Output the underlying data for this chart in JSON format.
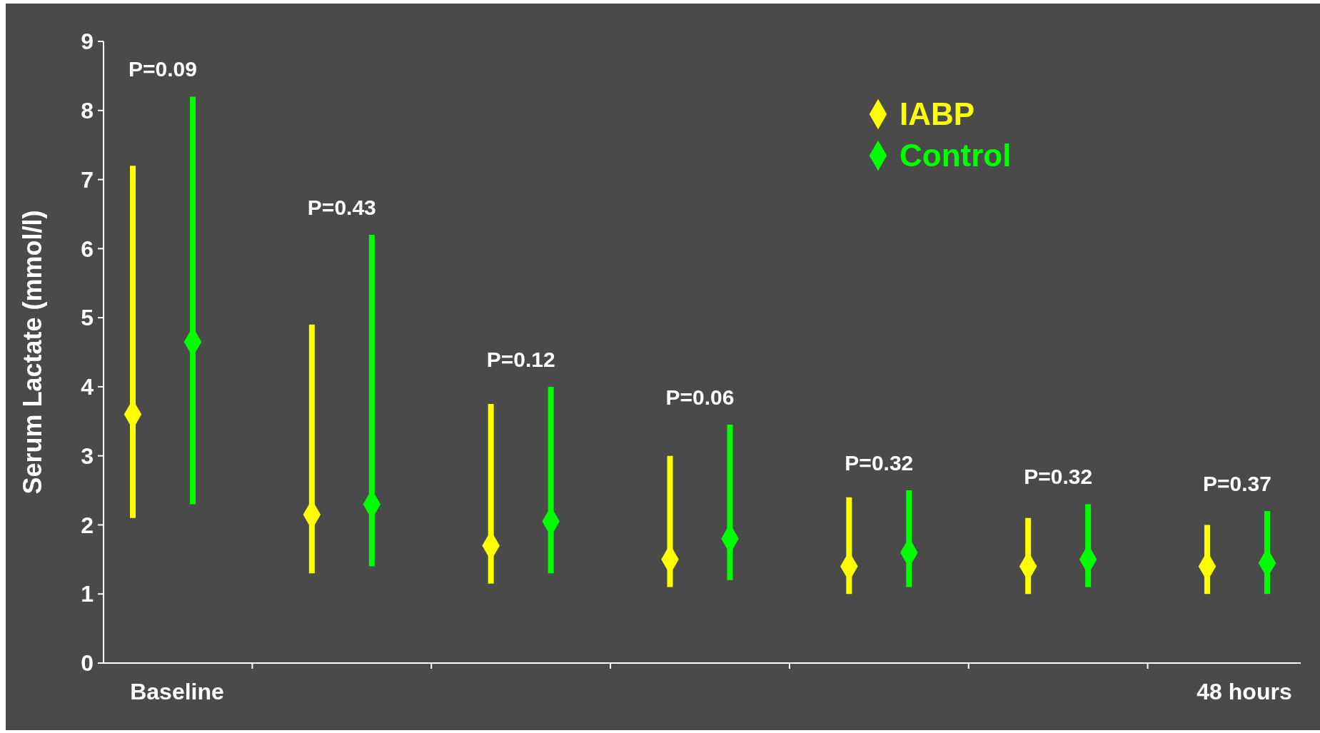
{
  "chart_data": {
    "type": "scatter",
    "ylabel": "Serum Lactate (mmol/l)",
    "categories": [
      "Baseline",
      null,
      null,
      null,
      null,
      null,
      "48 hours"
    ],
    "series": [
      {
        "name": "IABP",
        "color": "#ffff00",
        "values": [
          3.6,
          2.15,
          1.7,
          1.5,
          1.4,
          1.4,
          1.4
        ],
        "errors": [
          [
            2.1,
            7.2
          ],
          [
            1.3,
            4.9
          ],
          [
            1.15,
            3.75
          ],
          [
            1.1,
            3.0
          ],
          [
            1.0,
            2.4
          ],
          [
            1.0,
            2.1
          ],
          [
            1.0,
            2.0
          ]
        ]
      },
      {
        "name": "Control",
        "color": "#00ff00",
        "values": [
          4.65,
          2.3,
          2.05,
          1.8,
          1.6,
          1.5,
          1.45
        ],
        "errors": [
          [
            2.3,
            8.2
          ],
          [
            1.4,
            6.2
          ],
          [
            1.3,
            4.0
          ],
          [
            1.2,
            3.45
          ],
          [
            1.1,
            2.5
          ],
          [
            1.1,
            2.3
          ],
          [
            1.0,
            2.2
          ]
        ]
      }
    ],
    "ylim": [
      0,
      9
    ],
    "yticks": [
      0,
      1,
      2,
      3,
      4,
      5,
      6,
      7,
      8,
      9
    ],
    "grid": false,
    "legend": "top right",
    "marker": "diamond",
    "annotations": [
      "P=0.09",
      "P=0.43",
      "P=0.12",
      "P=0.06",
      "P=0.32",
      "P=0.32",
      "P=0.37"
    ]
  }
}
